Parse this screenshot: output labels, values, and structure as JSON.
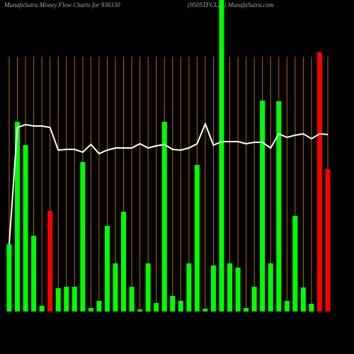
{
  "chart_data": {
    "type": "bar",
    "title": "MunafaSutra  Money Flow  Charts for 936330",
    "subtitle": "(950STFCL29)  MunafaSutra.com",
    "categories": [
      null,
      null,
      null,
      null,
      null,
      null,
      null,
      null,
      null,
      null,
      null,
      null,
      null,
      null,
      null,
      null,
      null,
      null,
      null,
      null,
      null,
      null,
      null,
      null,
      null,
      null,
      null,
      null,
      null,
      null,
      null,
      null,
      null,
      null,
      null,
      null,
      null,
      null,
      null,
      null
    ],
    "values": [
      95,
      268,
      235,
      107,
      8,
      142,
      33,
      35,
      35,
      211,
      5,
      15,
      121,
      68,
      141,
      35,
      3,
      68,
      12,
      268,
      22,
      15,
      68,
      207,
      4,
      65,
      440,
      68,
      62,
      5,
      35,
      298,
      68,
      297,
      15,
      135,
      34,
      11,
      366,
      201
    ],
    "colors": [
      "#00ff00",
      "#00ff00",
      "#00ff00",
      "#00ff00",
      "#00ff00",
      "#ff0000",
      "#00ff00",
      "#00ff00",
      "#00ff00",
      "#00ff00",
      "#00ff00",
      "#00ff00",
      "#00ff00",
      "#00ff00",
      "#00ff00",
      "#00ff00",
      "#00ff00",
      "#00ff00",
      "#00ff00",
      "#00ff00",
      "#00ff00",
      "#00ff00",
      "#00ff00",
      "#00ff00",
      "#00ff00",
      "#00ff00",
      "#00ff00",
      "#00ff00",
      "#00ff00",
      "#00ff00",
      "#00ff00",
      "#00ff00",
      "#00ff00",
      "#00ff00",
      "#00ff00",
      "#00ff00",
      "#00ff00",
      "#00ff00",
      "#ff0000",
      "#ff0000"
    ],
    "line_values": [
      95,
      260,
      264,
      262,
      262,
      260,
      228,
      229,
      229,
      225,
      236,
      223,
      228,
      231,
      231,
      231,
      237,
      231,
      234,
      236,
      229,
      228,
      231,
      237,
      265,
      235,
      240,
      240,
      240,
      237,
      239,
      239,
      231,
      251,
      246,
      249,
      251,
      244,
      251,
      250
    ],
    "line_color": "#ffffff",
    "grid_color": "#b86a00",
    "ylim": [
      0,
      440
    ]
  }
}
